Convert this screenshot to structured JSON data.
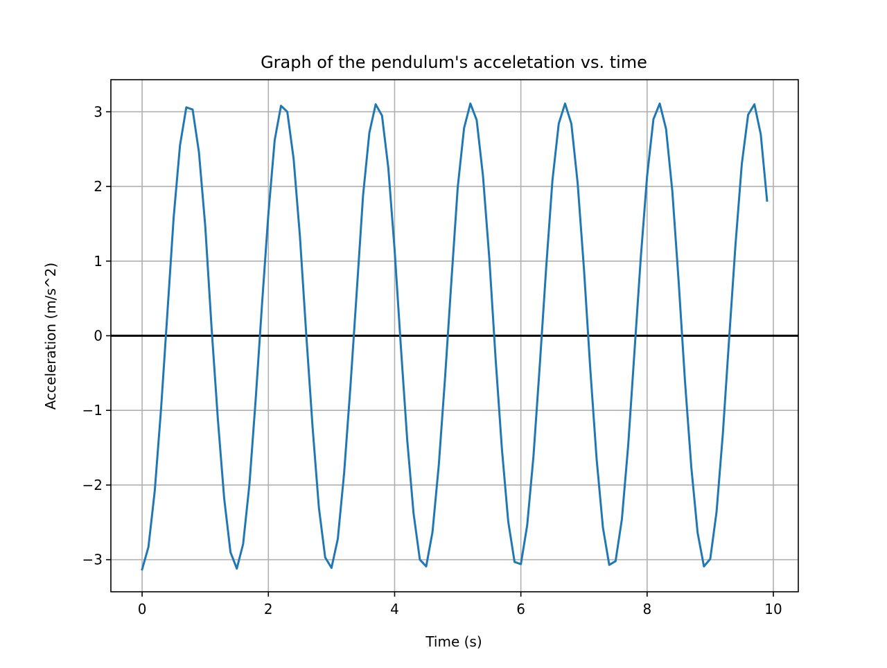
{
  "chart_data": {
    "type": "line",
    "title": "Graph of the pendulum's acceletation vs. time",
    "xlabel": "Time (s)",
    "ylabel": "Acceleration (m/s^2)",
    "xlim": [
      -0.495,
      10.395
    ],
    "ylim": [
      -3.43,
      3.43
    ],
    "xticks": [
      0,
      2,
      4,
      6,
      8,
      10
    ],
    "yticks": [
      3,
      2,
      1,
      0,
      -1,
      -2,
      -3
    ],
    "xtick_labels": [
      "0",
      "2",
      "4",
      "6",
      "8",
      "10"
    ],
    "ytick_labels": [
      "3",
      "2",
      "1",
      "0",
      "−1",
      "−2",
      "−3"
    ],
    "grid": true,
    "zero_line": true,
    "series": [
      {
        "color": "#1f77b4",
        "x": [
          0.0,
          0.1,
          0.2,
          0.3,
          0.4,
          0.5,
          0.6,
          0.7,
          0.8,
          0.9,
          1.0,
          1.1,
          1.2,
          1.3,
          1.4,
          1.5,
          1.6,
          1.7,
          1.8,
          1.9,
          2.0,
          2.1,
          2.2,
          2.3,
          2.4,
          2.5,
          2.6,
          2.7,
          2.8,
          2.9,
          3.0,
          3.1,
          3.2,
          3.3,
          3.4,
          3.5,
          3.6,
          3.7,
          3.8,
          3.9,
          4.0,
          4.1,
          4.2,
          4.3,
          4.4,
          4.5,
          4.6,
          4.7,
          4.8,
          4.9,
          5.0,
          5.1,
          5.2,
          5.3,
          5.4,
          5.5,
          5.6,
          5.7,
          5.8,
          5.9,
          6.0,
          6.1,
          6.2,
          6.3,
          6.4,
          6.5,
          6.6,
          6.7,
          6.8,
          6.9,
          7.0,
          7.1,
          7.2,
          7.3,
          7.4,
          7.5,
          7.6,
          7.7,
          7.8,
          7.9,
          8.0,
          8.1,
          8.2,
          8.3,
          8.4,
          8.5,
          8.6,
          8.7,
          8.8,
          8.9,
          9.0,
          9.1,
          9.2,
          9.3,
          9.4,
          9.5,
          9.6,
          9.7,
          9.8,
          9.9
        ],
        "y": [
          -3.13,
          -2.83,
          -2.08,
          -0.98,
          0.3,
          1.59,
          2.55,
          3.06,
          3.03,
          2.46,
          1.47,
          0.11,
          -1.12,
          -2.18,
          -2.9,
          -3.12,
          -2.79,
          -1.99,
          -0.84,
          0.43,
          1.63,
          2.62,
          3.08,
          3.0,
          2.37,
          1.33,
          0.02,
          -1.22,
          -2.3,
          -2.97,
          -3.11,
          -2.72,
          -1.84,
          -0.68,
          0.59,
          1.88,
          2.72,
          3.1,
          2.95,
          2.25,
          1.15,
          -0.16,
          -1.4,
          -2.38,
          -3.0,
          -3.09,
          -2.63,
          -1.73,
          -0.55,
          0.74,
          1.99,
          2.78,
          3.11,
          2.89,
          2.14,
          1.04,
          -0.31,
          -1.52,
          -2.49,
          -3.03,
          -3.06,
          -2.54,
          -1.61,
          -0.39,
          0.9,
          2.08,
          2.84,
          3.11,
          2.84,
          2.04,
          0.89,
          -0.45,
          -1.65,
          -2.57,
          -3.07,
          -3.02,
          -2.46,
          -1.47,
          -0.21,
          1.05,
          2.14,
          2.9,
          3.11,
          2.77,
          1.93,
          0.72,
          -0.61,
          -1.76,
          -2.64,
          -3.09,
          -2.99,
          -2.36,
          -1.31,
          -0.03,
          1.22,
          2.3,
          2.96,
          3.1,
          2.7,
          1.81
        ]
      }
    ]
  }
}
